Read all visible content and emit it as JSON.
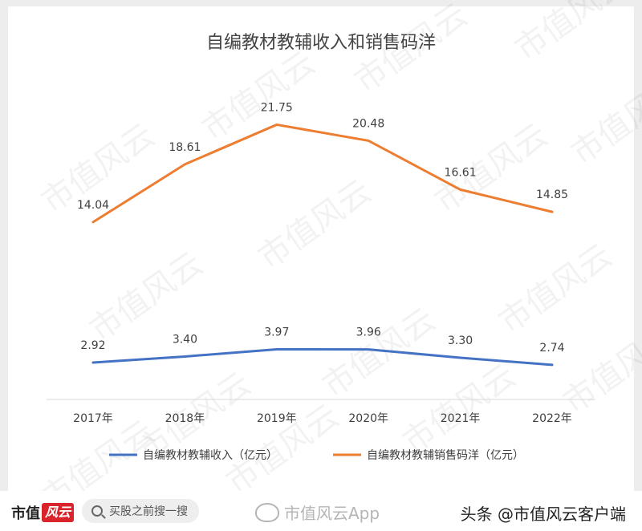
{
  "chart_data": {
    "type": "line",
    "title": "自编教材教辅收入和销售码洋",
    "categories": [
      "2017年",
      "2018年",
      "2019年",
      "2020年",
      "2021年",
      "2022年"
    ],
    "series": [
      {
        "name": "自编教材教辅收入（亿元）",
        "values": [
          2.92,
          3.4,
          3.97,
          3.96,
          3.3,
          2.74
        ],
        "labels": [
          "2.92",
          "3.40",
          "3.97",
          "3.96",
          "3.30",
          "2.74"
        ],
        "color": "#4472c4"
      },
      {
        "name": "自编教材教辅销售码洋（亿元）",
        "values": [
          14.04,
          18.61,
          21.75,
          20.48,
          16.61,
          14.85
        ],
        "labels": [
          "14.04",
          "18.61",
          "21.75",
          "20.48",
          "16.61",
          "14.85"
        ],
        "color": "#ed7d31"
      }
    ],
    "ylim": [
      0,
      25
    ],
    "grid": false,
    "legend": "bottom"
  },
  "watermark": {
    "text": "市值风云"
  },
  "footer": {
    "brand_name": "市值",
    "brand_logo": "风云",
    "search_placeholder": "买股之前搜一搜",
    "weibo_text": "市值风云App",
    "toutiao_text": "头条 @市值风云客户端"
  }
}
